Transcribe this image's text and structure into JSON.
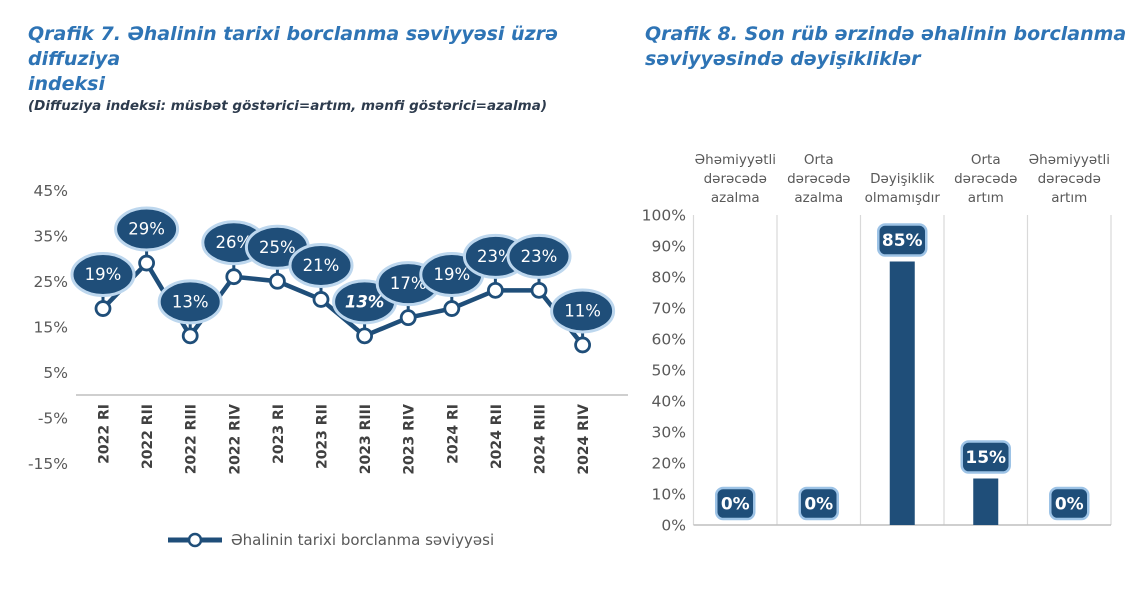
{
  "colors": {
    "accent": "#1F4E79",
    "bubble_halo": "#BDD7EE",
    "label_box_border": "#9DC3E6",
    "title": "#2E74B5",
    "subtitle": "#2D3B4D",
    "axis_text": "#595959",
    "category_text": "#404040",
    "gridline": "#D9D9D9",
    "axis_line": "#BFBFBF",
    "marker_fill": "#FFFFFF",
    "data_label_text": "#FFFFFF"
  },
  "chart_data": [
    {
      "id": "historical-borrowing-diffusion",
      "type": "line",
      "title": "Qrafik 7. Əhalinin tarixi borclanma səviyyəsi üzrə diffuziya\nindeksi",
      "subtitle": "(Diffuziya indeksi: müsbət göstərici=artım, mənfi göstərici=azalma)",
      "categories": [
        "2022 RI",
        "2022 RII",
        "2022 RIII",
        "2022 RIV",
        "2023 RI",
        "2023 RII",
        "2023 RIII",
        "2023 RIV",
        "2024 RI",
        "2024 RII",
        "2024 RIII",
        "2024 RIV"
      ],
      "values": [
        19,
        29,
        13,
        26,
        25,
        21,
        13,
        17,
        19,
        23,
        23,
        11
      ],
      "data_labels": [
        "19%",
        "29%",
        "13%",
        "26%",
        "25%",
        "21%",
        "13%",
        "17%",
        "19%",
        "23%",
        "23%",
        "11%"
      ],
      "emphasized_label_index": 6,
      "y_ticks": [
        45,
        35,
        25,
        15,
        5,
        -5,
        -15
      ],
      "y_tick_labels": [
        "45%",
        "35%",
        "25%",
        "15%",
        "5%",
        "-5%",
        "-15%"
      ],
      "ylim": [
        -15,
        45
      ],
      "grid": false,
      "legend": "Əhalinin tarixi borclanma səviyyəsi",
      "legend_position": "bottom"
    },
    {
      "id": "last-quarter-borrowing-change",
      "type": "bar",
      "title": "Qrafik 8. Son rüb ərzində əhalinin borclanma\nsəviyyəsində dəyişikliklər",
      "categories": [
        "Əhəmiyyətli dərəcədə azalma",
        "Orta dərəcədə azalma",
        "Dəyişiklik olmamışdır",
        "Orta dərəcədə artım",
        "Əhəmiyyətli dərəcədə artım"
      ],
      "category_lines": [
        [
          "Əhəmiyyətli",
          "dərəcədə",
          "azalma"
        ],
        [
          "Orta",
          "dərəcədə",
          "azalma"
        ],
        [
          "Dəyişiklik",
          "olmamışdır"
        ],
        [
          "Orta",
          "dərəcədə",
          "artım"
        ],
        [
          "Əhəmiyyətli",
          "dərəcədə",
          "artım"
        ]
      ],
      "values": [
        0,
        0,
        85,
        15,
        0
      ],
      "data_labels": [
        "0%",
        "0%",
        "85%",
        "15%",
        "0%"
      ],
      "y_ticks": [
        100,
        90,
        80,
        70,
        60,
        50,
        40,
        30,
        20,
        10,
        0
      ],
      "y_tick_labels": [
        "100%",
        "90%",
        "80%",
        "70%",
        "60%",
        "50%",
        "40%",
        "30%",
        "20%",
        "10%",
        "0%"
      ],
      "ylim": [
        0,
        100
      ],
      "grid": "vertical",
      "legend_position": "none"
    }
  ]
}
